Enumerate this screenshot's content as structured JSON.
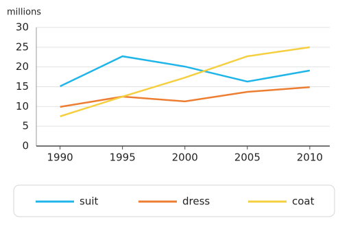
{
  "chart_data": {
    "type": "line",
    "y_label": "millions",
    "x": [
      1990,
      1995,
      2000,
      2005,
      2010
    ],
    "series": [
      {
        "name": "suit",
        "color": "#1fb5e8",
        "values": [
          15.1,
          22.7,
          20.1,
          16.3,
          19.1
        ]
      },
      {
        "name": "dress",
        "color": "#ed7d31",
        "values": [
          9.9,
          12.5,
          11.3,
          13.7,
          14.9
        ]
      },
      {
        "name": "coat",
        "color": "#f5cf3f",
        "values": [
          7.5,
          12.5,
          17.3,
          22.7,
          25
        ]
      }
    ],
    "xlim": [
      1988.1,
      2011.6
    ],
    "xticks": [
      1990,
      1995,
      2000,
      2005,
      2010
    ],
    "ylim": [
      0,
      30
    ],
    "yticks": [
      0,
      5,
      10,
      15,
      20,
      25,
      30
    ],
    "grid": true
  }
}
